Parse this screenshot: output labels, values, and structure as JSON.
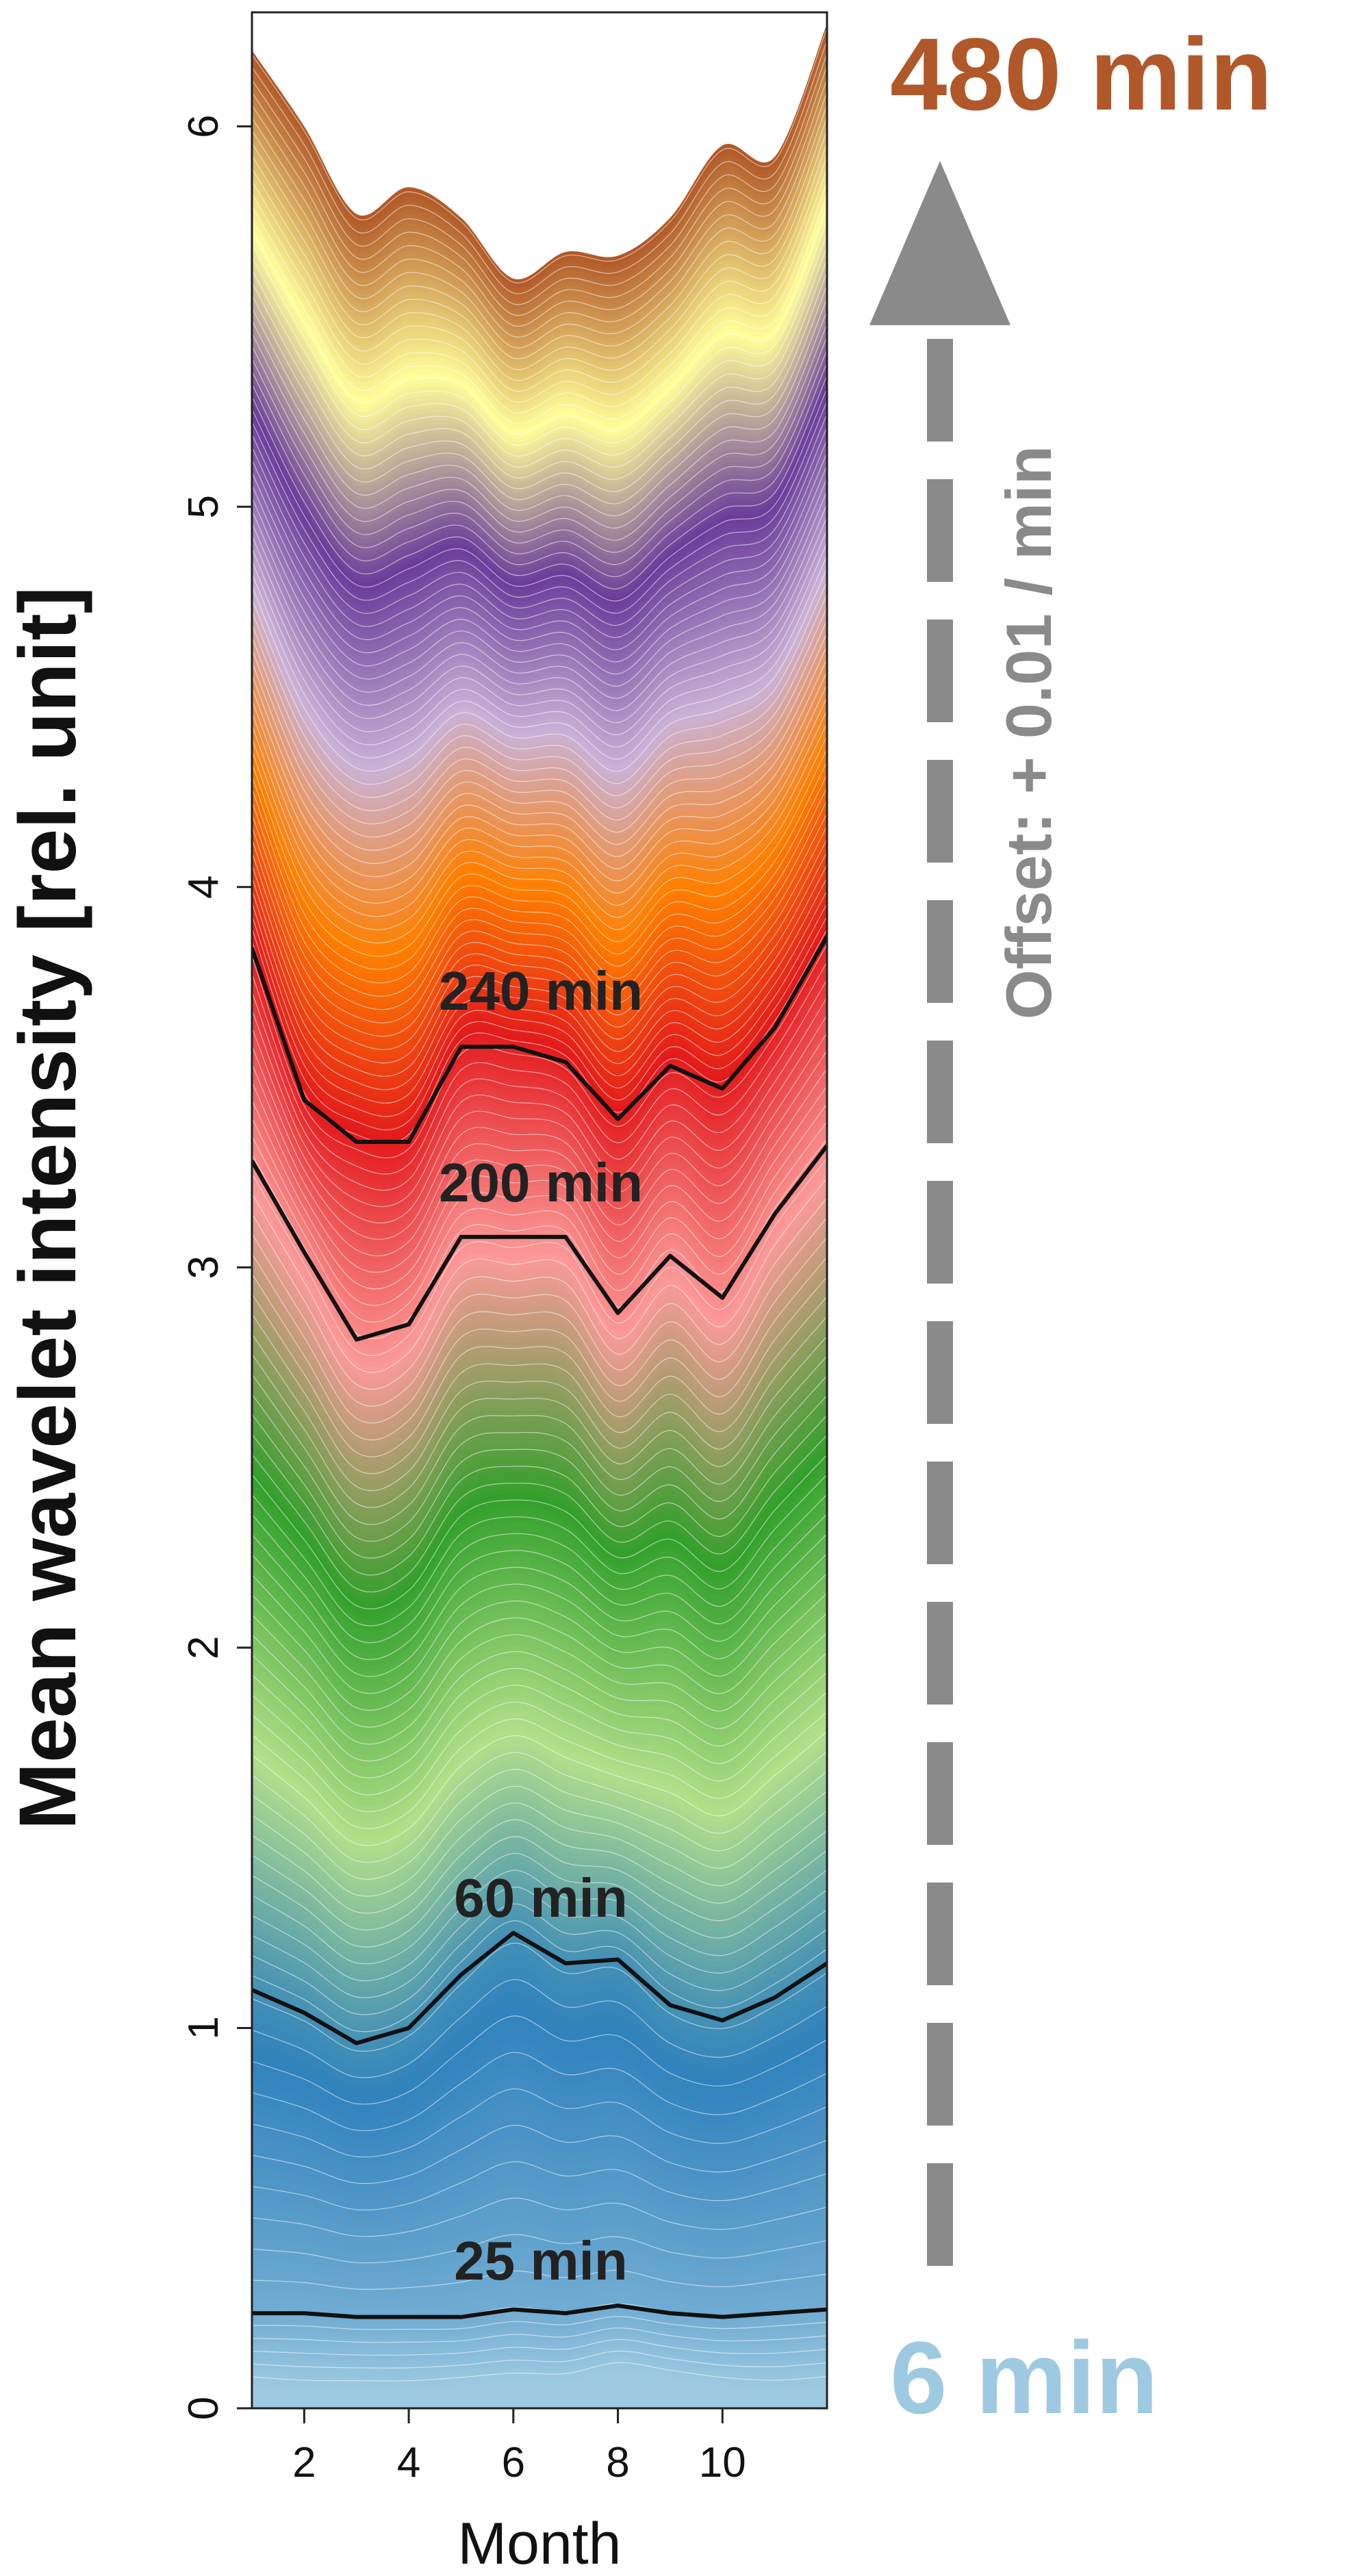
{
  "chart_data": {
    "type": "line",
    "xlabel": "Month",
    "ylabel": "Mean wavelet intensity [rel. unit]",
    "x": [
      1,
      2,
      3,
      4,
      5,
      6,
      7,
      8,
      9,
      10,
      11,
      12
    ],
    "xlim": [
      1,
      12
    ],
    "ylim": [
      0,
      6.3
    ],
    "xticks": [
      2,
      4,
      6,
      8,
      10
    ],
    "yticks": [
      0,
      1,
      2,
      3,
      4,
      5,
      6
    ],
    "grid": false,
    "legend": "none",
    "period_range_label_top": "480 min",
    "period_range_label_bottom": "6 min",
    "offset_label": "Offset: + 0.01 / min",
    "top_label_color": "#b0582a",
    "bottom_label_color": "#9ecae1",
    "offset_arrow_color": "#8a8a8a",
    "highlight_color": "#111111",
    "band_colors": [
      "#9ecae1",
      "#3182bd",
      "#b2df8a",
      "#33a02c",
      "#fb9a99",
      "#e31a1c",
      "#ff7f00",
      "#cab2d6",
      "#6a3d9a",
      "#ffff99",
      "#b15928"
    ],
    "highlighted_series": [
      {
        "name": "25 min",
        "values": [
          0.25,
          0.25,
          0.24,
          0.24,
          0.24,
          0.26,
          0.25,
          0.27,
          0.25,
          0.24,
          0.25,
          0.26
        ]
      },
      {
        "name": "60 min",
        "values": [
          1.1,
          1.04,
          0.96,
          1.0,
          1.14,
          1.25,
          1.17,
          1.18,
          1.06,
          1.02,
          1.08,
          1.17
        ]
      },
      {
        "name": "200 min",
        "values": [
          3.28,
          3.04,
          2.81,
          2.85,
          3.08,
          3.08,
          3.08,
          2.88,
          3.03,
          2.92,
          3.14,
          3.32
        ]
      },
      {
        "name": "240 min",
        "values": [
          3.84,
          3.44,
          3.33,
          3.33,
          3.58,
          3.58,
          3.54,
          3.39,
          3.53,
          3.47,
          3.63,
          3.87
        ]
      }
    ],
    "envelope_series": [
      {
        "name": "6 min",
        "values": [
          0.06,
          0.05,
          0.05,
          0.05,
          0.06,
          0.07,
          0.07,
          0.1,
          0.08,
          0.06,
          0.05,
          0.06
        ]
      },
      {
        "name": "480 min",
        "values": [
          6.2,
          6.0,
          5.77,
          5.84,
          5.76,
          5.6,
          5.67,
          5.66,
          5.76,
          5.95,
          5.92,
          6.27
        ]
      }
    ]
  }
}
